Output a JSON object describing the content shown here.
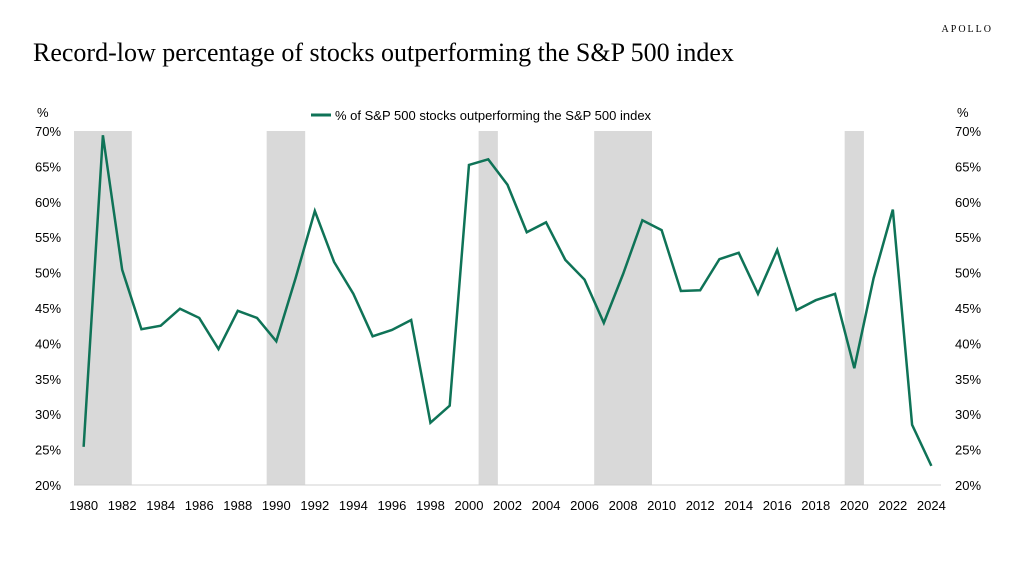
{
  "header": {
    "title": "Record-low percentage of stocks outperforming the S&P 500 index",
    "brand": "APOLLO"
  },
  "chart_data": {
    "type": "line",
    "title": "Record-low percentage of stocks outperforming the S&P 500 index",
    "ylabel_left": "%",
    "ylabel_right": "%",
    "ylim": [
      20,
      70
    ],
    "xlim": [
      1979.5,
      2024.5
    ],
    "y_ticks": [
      "20%",
      "25%",
      "30%",
      "35%",
      "40%",
      "45%",
      "50%",
      "55%",
      "60%",
      "65%",
      "70%"
    ],
    "x_ticks": [
      "1980",
      "1982",
      "1984",
      "1986",
      "1988",
      "1990",
      "1992",
      "1994",
      "1996",
      "1998",
      "2000",
      "2002",
      "2004",
      "2006",
      "2008",
      "2010",
      "2012",
      "2014",
      "2016",
      "2018",
      "2020",
      "2022",
      "2024"
    ],
    "grid": false,
    "legend_position": "top-center",
    "shaded_ranges": [
      [
        1979.5,
        1982.5
      ],
      [
        1989.5,
        1991.5
      ],
      [
        2000.5,
        2001.5
      ],
      [
        2006.5,
        2009.5
      ],
      [
        2019.5,
        2020.5
      ]
    ],
    "shade_color": "#d9d9d9",
    "x": [
      1980,
      1981,
      1982,
      1983,
      1984,
      1985,
      1986,
      1987,
      1988,
      1989,
      1990,
      1991,
      1992,
      1993,
      1994,
      1995,
      1996,
      1997,
      1998,
      1999,
      2000,
      2001,
      2002,
      2003,
      2004,
      2005,
      2006,
      2007,
      2008,
      2009,
      2010,
      2011,
      2012,
      2013,
      2014,
      2015,
      2016,
      2017,
      2018,
      2019,
      2020,
      2021,
      2022,
      2023,
      2024
    ],
    "series": [
      {
        "name": "% of S&P 500 stocks outperforming the S&P 500 index",
        "color": "#0f7357",
        "values": [
          25.4,
          69.4,
          50.4,
          42.0,
          42.5,
          44.9,
          43.6,
          39.2,
          44.6,
          43.6,
          40.3,
          49.2,
          58.7,
          51.5,
          47.0,
          41.0,
          41.9,
          43.3,
          28.8,
          31.2,
          65.2,
          66.0,
          62.4,
          55.7,
          57.1,
          51.8,
          49.0,
          42.9,
          49.8,
          57.4,
          56.0,
          47.4,
          47.5,
          51.9,
          52.8,
          47.0,
          53.2,
          44.7,
          46.1,
          47.0,
          36.5,
          49.2,
          58.9,
          28.5,
          22.7
        ]
      }
    ]
  }
}
